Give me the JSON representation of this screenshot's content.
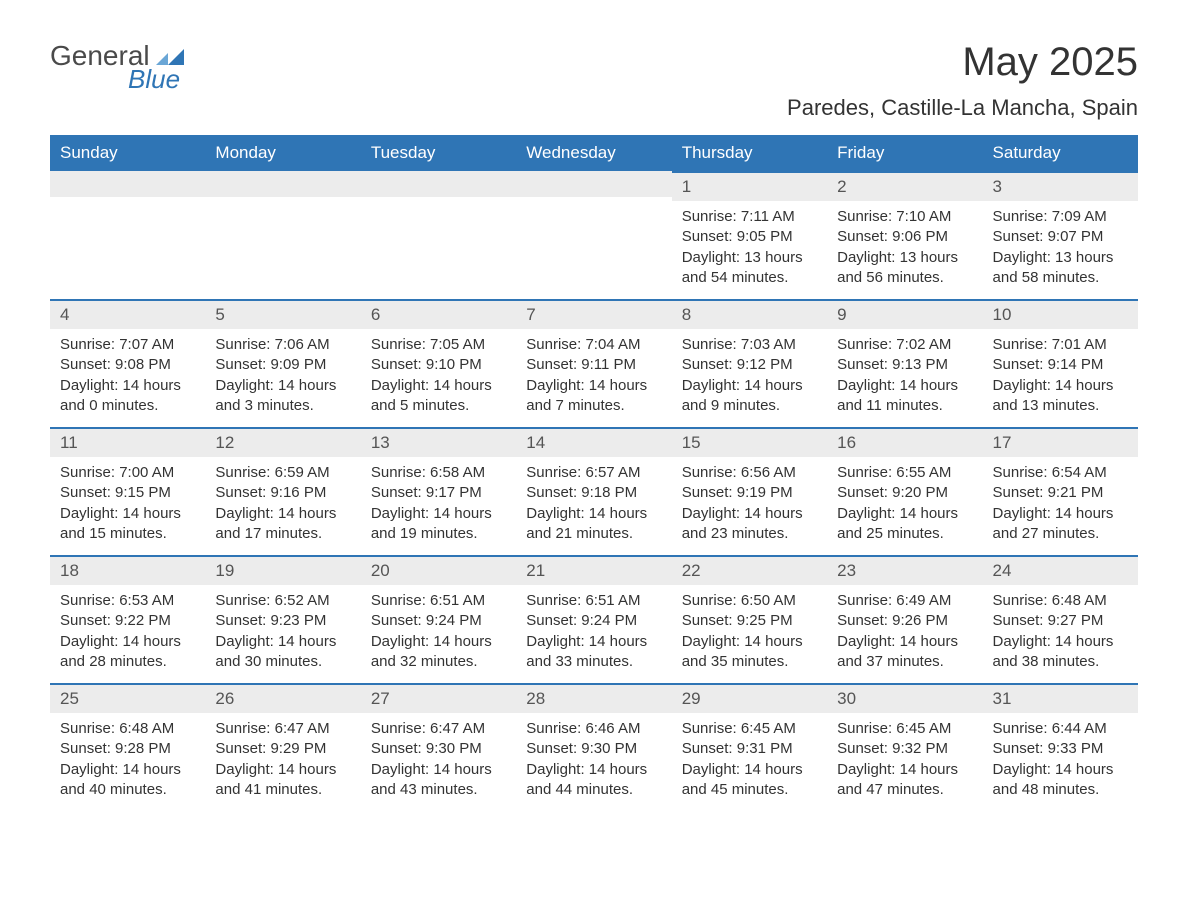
{
  "logo": {
    "text_general": "General",
    "text_blue": "Blue",
    "mark_color_light": "#6aa6d6",
    "mark_color_dark": "#2f75b5"
  },
  "title": "May 2025",
  "location": "Paredes, Castille-La Mancha, Spain",
  "colors": {
    "header_bg": "#2f75b5",
    "header_text": "#ffffff",
    "daynum_bg": "#ececec",
    "cell_border": "#2f75b5",
    "body_text": "#333333"
  },
  "day_headers": [
    "Sunday",
    "Monday",
    "Tuesday",
    "Wednesday",
    "Thursday",
    "Friday",
    "Saturday"
  ],
  "weeks": [
    [
      null,
      null,
      null,
      null,
      {
        "n": "1",
        "sunrise": "7:11 AM",
        "sunset": "9:05 PM",
        "dl1": "Daylight: 13 hours",
        "dl2": "and 54 minutes."
      },
      {
        "n": "2",
        "sunrise": "7:10 AM",
        "sunset": "9:06 PM",
        "dl1": "Daylight: 13 hours",
        "dl2": "and 56 minutes."
      },
      {
        "n": "3",
        "sunrise": "7:09 AM",
        "sunset": "9:07 PM",
        "dl1": "Daylight: 13 hours",
        "dl2": "and 58 minutes."
      }
    ],
    [
      {
        "n": "4",
        "sunrise": "7:07 AM",
        "sunset": "9:08 PM",
        "dl1": "Daylight: 14 hours",
        "dl2": "and 0 minutes."
      },
      {
        "n": "5",
        "sunrise": "7:06 AM",
        "sunset": "9:09 PM",
        "dl1": "Daylight: 14 hours",
        "dl2": "and 3 minutes."
      },
      {
        "n": "6",
        "sunrise": "7:05 AM",
        "sunset": "9:10 PM",
        "dl1": "Daylight: 14 hours",
        "dl2": "and 5 minutes."
      },
      {
        "n": "7",
        "sunrise": "7:04 AM",
        "sunset": "9:11 PM",
        "dl1": "Daylight: 14 hours",
        "dl2": "and 7 minutes."
      },
      {
        "n": "8",
        "sunrise": "7:03 AM",
        "sunset": "9:12 PM",
        "dl1": "Daylight: 14 hours",
        "dl2": "and 9 minutes."
      },
      {
        "n": "9",
        "sunrise": "7:02 AM",
        "sunset": "9:13 PM",
        "dl1": "Daylight: 14 hours",
        "dl2": "and 11 minutes."
      },
      {
        "n": "10",
        "sunrise": "7:01 AM",
        "sunset": "9:14 PM",
        "dl1": "Daylight: 14 hours",
        "dl2": "and 13 minutes."
      }
    ],
    [
      {
        "n": "11",
        "sunrise": "7:00 AM",
        "sunset": "9:15 PM",
        "dl1": "Daylight: 14 hours",
        "dl2": "and 15 minutes."
      },
      {
        "n": "12",
        "sunrise": "6:59 AM",
        "sunset": "9:16 PM",
        "dl1": "Daylight: 14 hours",
        "dl2": "and 17 minutes."
      },
      {
        "n": "13",
        "sunrise": "6:58 AM",
        "sunset": "9:17 PM",
        "dl1": "Daylight: 14 hours",
        "dl2": "and 19 minutes."
      },
      {
        "n": "14",
        "sunrise": "6:57 AM",
        "sunset": "9:18 PM",
        "dl1": "Daylight: 14 hours",
        "dl2": "and 21 minutes."
      },
      {
        "n": "15",
        "sunrise": "6:56 AM",
        "sunset": "9:19 PM",
        "dl1": "Daylight: 14 hours",
        "dl2": "and 23 minutes."
      },
      {
        "n": "16",
        "sunrise": "6:55 AM",
        "sunset": "9:20 PM",
        "dl1": "Daylight: 14 hours",
        "dl2": "and 25 minutes."
      },
      {
        "n": "17",
        "sunrise": "6:54 AM",
        "sunset": "9:21 PM",
        "dl1": "Daylight: 14 hours",
        "dl2": "and 27 minutes."
      }
    ],
    [
      {
        "n": "18",
        "sunrise": "6:53 AM",
        "sunset": "9:22 PM",
        "dl1": "Daylight: 14 hours",
        "dl2": "and 28 minutes."
      },
      {
        "n": "19",
        "sunrise": "6:52 AM",
        "sunset": "9:23 PM",
        "dl1": "Daylight: 14 hours",
        "dl2": "and 30 minutes."
      },
      {
        "n": "20",
        "sunrise": "6:51 AM",
        "sunset": "9:24 PM",
        "dl1": "Daylight: 14 hours",
        "dl2": "and 32 minutes."
      },
      {
        "n": "21",
        "sunrise": "6:51 AM",
        "sunset": "9:24 PM",
        "dl1": "Daylight: 14 hours",
        "dl2": "and 33 minutes."
      },
      {
        "n": "22",
        "sunrise": "6:50 AM",
        "sunset": "9:25 PM",
        "dl1": "Daylight: 14 hours",
        "dl2": "and 35 minutes."
      },
      {
        "n": "23",
        "sunrise": "6:49 AM",
        "sunset": "9:26 PM",
        "dl1": "Daylight: 14 hours",
        "dl2": "and 37 minutes."
      },
      {
        "n": "24",
        "sunrise": "6:48 AM",
        "sunset": "9:27 PM",
        "dl1": "Daylight: 14 hours",
        "dl2": "and 38 minutes."
      }
    ],
    [
      {
        "n": "25",
        "sunrise": "6:48 AM",
        "sunset": "9:28 PM",
        "dl1": "Daylight: 14 hours",
        "dl2": "and 40 minutes."
      },
      {
        "n": "26",
        "sunrise": "6:47 AM",
        "sunset": "9:29 PM",
        "dl1": "Daylight: 14 hours",
        "dl2": "and 41 minutes."
      },
      {
        "n": "27",
        "sunrise": "6:47 AM",
        "sunset": "9:30 PM",
        "dl1": "Daylight: 14 hours",
        "dl2": "and 43 minutes."
      },
      {
        "n": "28",
        "sunrise": "6:46 AM",
        "sunset": "9:30 PM",
        "dl1": "Daylight: 14 hours",
        "dl2": "and 44 minutes."
      },
      {
        "n": "29",
        "sunrise": "6:45 AM",
        "sunset": "9:31 PM",
        "dl1": "Daylight: 14 hours",
        "dl2": "and 45 minutes."
      },
      {
        "n": "30",
        "sunrise": "6:45 AM",
        "sunset": "9:32 PM",
        "dl1": "Daylight: 14 hours",
        "dl2": "and 47 minutes."
      },
      {
        "n": "31",
        "sunrise": "6:44 AM",
        "sunset": "9:33 PM",
        "dl1": "Daylight: 14 hours",
        "dl2": "and 48 minutes."
      }
    ]
  ],
  "labels": {
    "sunrise_prefix": "Sunrise: ",
    "sunset_prefix": "Sunset: "
  }
}
